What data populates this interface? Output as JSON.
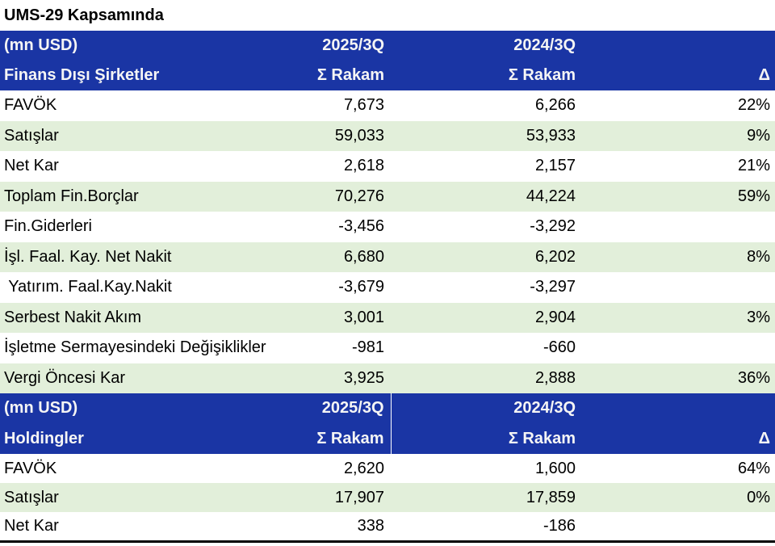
{
  "title": "UMS-29 Kapsamında",
  "colors": {
    "header_bg": "#1A35A4",
    "header_text": "#F5F5F5",
    "row_alt_bg": "#E2EFDA",
    "text": "#000000",
    "bottom_border": "#000000"
  },
  "sections": [
    {
      "unit_label": "(mn USD)",
      "period_current": "2025/3Q",
      "period_prior": "2024/3Q",
      "group_label": "Finans Dışı Şirketler",
      "sum_label_current": "Σ Rakam",
      "sum_label_prior": "Σ Rakam",
      "delta_label": "Δ",
      "rows": [
        {
          "label": "FAVÖK",
          "v_current": "7,673",
          "v_prior": "6,266",
          "delta": "22%"
        },
        {
          "label": "Satışlar",
          "v_current": "59,033",
          "v_prior": "53,933",
          "delta": "9%"
        },
        {
          "label": "Net Kar",
          "v_current": "2,618",
          "v_prior": "2,157",
          "delta": "21%"
        },
        {
          "label": "Toplam Fin.Borçlar",
          "v_current": "70,276",
          "v_prior": "44,224",
          "delta": "59%"
        },
        {
          "label": "Fin.Giderleri",
          "v_current": "-3,456",
          "v_prior": "-3,292",
          "delta": ""
        },
        {
          "label": "İşl. Faal. Kay. Net Nakit",
          "v_current": "6,680",
          "v_prior": "6,202",
          "delta": "8%"
        },
        {
          "label": " Yatırım. Faal.Kay.Nakit",
          "v_current": "-3,679",
          "v_prior": "-3,297",
          "delta": ""
        },
        {
          "label": "Serbest Nakit Akım",
          "v_current": "3,001",
          "v_prior": "2,904",
          "delta": "3%"
        },
        {
          "label": "İşletme Sermayesindeki Değişiklikler",
          "v_current": "-981",
          "v_prior": "-660",
          "delta": ""
        },
        {
          "label": "Vergi Öncesi Kar",
          "v_current": "3,925",
          "v_prior": "2,888",
          "delta": "36%"
        }
      ]
    },
    {
      "unit_label": "(mn USD)",
      "period_current": "2025/3Q",
      "period_prior": "2024/3Q",
      "group_label": "Holdingler",
      "sum_label_current": "Σ Rakam",
      "sum_label_prior": "Σ Rakam",
      "delta_label": "Δ",
      "rows": [
        {
          "label": "FAVÖK",
          "v_current": "2,620",
          "v_prior": "1,600",
          "delta": "64%"
        },
        {
          "label": "Satışlar",
          "v_current": "17,907",
          "v_prior": "17,859",
          "delta": "0%"
        },
        {
          "label": "Net Kar",
          "v_current": "338",
          "v_prior": "-186",
          "delta": ""
        }
      ]
    }
  ]
}
